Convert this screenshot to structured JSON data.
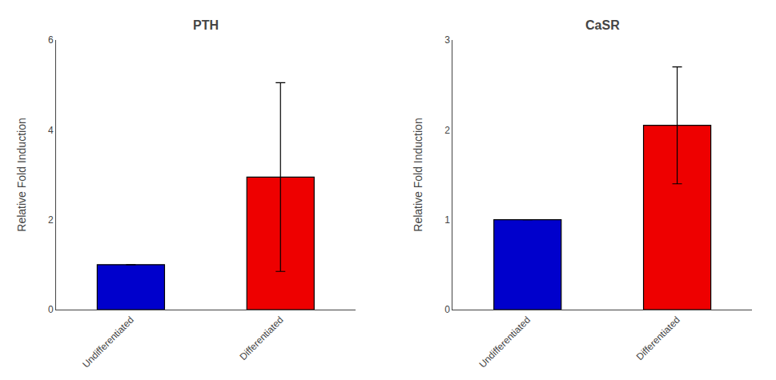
{
  "chart_data": [
    {
      "type": "bar",
      "title": "PTH",
      "categories": [
        "Undifferentiated",
        "Differentiated"
      ],
      "values": [
        1.0,
        2.95
      ],
      "errors": [
        0.0,
        2.1
      ],
      "colors": [
        "#0000cc",
        "#ee0000"
      ],
      "ylabel": "Relative Fold Induction",
      "ylim": [
        0,
        6
      ],
      "yticks": [
        0,
        2,
        4,
        6
      ],
      "grid": false
    },
    {
      "type": "bar",
      "title": "CaSR",
      "categories": [
        "Undifferentiated",
        "Differentiated"
      ],
      "values": [
        1.0,
        2.05
      ],
      "errors": [
        0.0,
        0.65
      ],
      "colors": [
        "#0000cc",
        "#ee0000"
      ],
      "ylabel": "Relative Fold Induction",
      "ylim": [
        0,
        3
      ],
      "yticks": [
        0,
        1,
        2,
        3
      ],
      "grid": false
    }
  ]
}
